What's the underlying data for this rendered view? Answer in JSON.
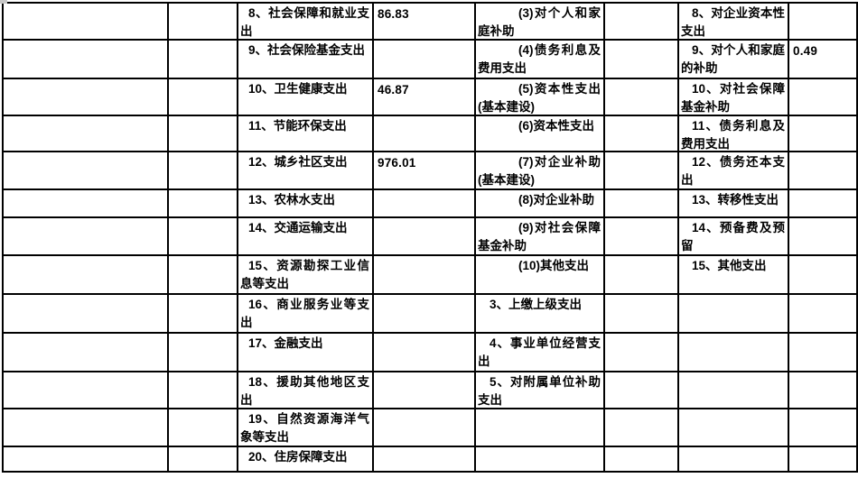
{
  "colors": {
    "page_background": "#ffffff",
    "grid_line": "#000000",
    "text": "#000000",
    "corner_artifact": "#c6c6c6"
  },
  "table": {
    "rows": [
      {
        "cells": [
          "",
          "",
          "8、社会保障和就业支出",
          "86.83",
          "(3)对个人和家庭补助",
          "",
          "8、对企业资本性支出",
          ""
        ]
      },
      {
        "cells": [
          "",
          "",
          "9、社会保险基金支出",
          "",
          "(4)债务利息及费用支出",
          "",
          "9、对个人和家庭的补助",
          "0.49"
        ]
      },
      {
        "cells": [
          "",
          "",
          "10、卫生健康支出",
          "46.87",
          "(5)资本性支出(基本建设)",
          "",
          "10、对社会保障基金补助",
          ""
        ]
      },
      {
        "cells": [
          "",
          "",
          "11、节能环保支出",
          "",
          "(6)资本性支出",
          "",
          "11、债务利息及费用支出",
          ""
        ]
      },
      {
        "cells": [
          "",
          "",
          "12、城乡社区支出",
          "976.01",
          "(7)对企业补助(基本建设)",
          "",
          "12、债务还本支出",
          ""
        ]
      },
      {
        "cells": [
          "",
          "",
          "13、农林水支出",
          "",
          "(8)对企业补助",
          "",
          "13、转移性支出",
          ""
        ]
      },
      {
        "cells": [
          "",
          "",
          "14、交通运输支出",
          "",
          "(9)对社会保障基金补助",
          "",
          "14、预备费及预留",
          ""
        ]
      },
      {
        "cells": [
          "",
          "",
          "15、资源勘探工业信息等支出",
          "",
          "(10)其他支出",
          "",
          "15、其他支出",
          ""
        ]
      },
      {
        "cells": [
          "",
          "",
          "16、商业服务业等支出",
          "",
          "3、上缴上级支出",
          "",
          "",
          ""
        ]
      },
      {
        "cells": [
          "",
          "",
          "17、金融支出",
          "",
          "4、事业单位经营支出",
          "",
          "",
          ""
        ]
      },
      {
        "cells": [
          "",
          "",
          "18、援助其他地区支出",
          "",
          "5、对附属单位补助支出",
          "",
          "",
          ""
        ]
      },
      {
        "cells": [
          "",
          "",
          "19、自然资源海洋气象等支出",
          "",
          "",
          "",
          "",
          ""
        ]
      },
      {
        "cells": [
          "",
          "",
          "20、住房保障支出",
          "",
          "",
          "",
          "",
          ""
        ]
      }
    ]
  }
}
